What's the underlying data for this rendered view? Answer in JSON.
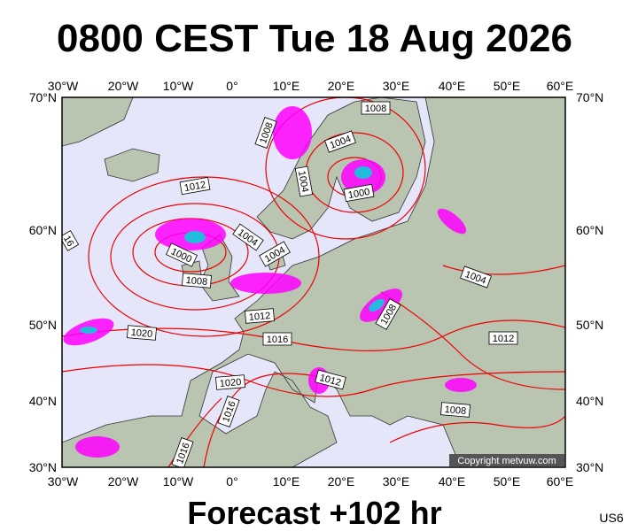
{
  "header": {
    "title": "0800 CEST Tue 18 Aug 2026"
  },
  "footer": {
    "forecast": "Forecast +102 hr",
    "code": "US6"
  },
  "copyright": "Copyright metvuw.com",
  "lon_labels": [
    "30°W",
    "20°W",
    "10°W",
    "0°",
    "10°E",
    "20°E",
    "30°E",
    "40°E",
    "50°E",
    "60°E"
  ],
  "lat_labels": [
    "70°N",
    "60°N",
    "50°N",
    "40°N",
    "30°N"
  ],
  "isobar_labels": [
    "1008",
    "1008",
    "1004",
    "1012",
    "1004",
    "1000",
    "1004",
    "1004",
    "1000",
    "1008",
    "1012",
    "1008",
    "1004",
    "1016",
    "1020",
    "1012",
    "1020",
    "1012",
    "1016",
    "1016",
    "1008",
    "16"
  ]
}
